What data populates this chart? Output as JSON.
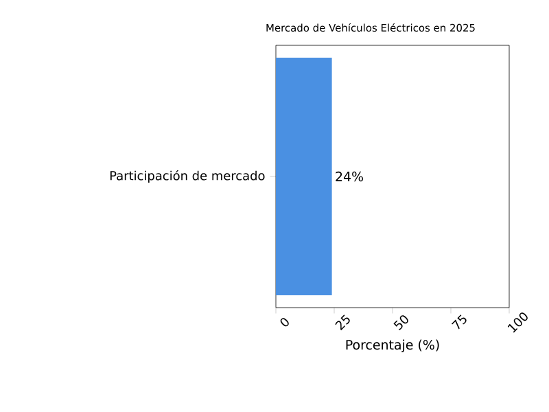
{
  "chart_data": {
    "type": "bar",
    "orientation": "horizontal",
    "title": "Mercado de Vehículos Eléctricos en 2025",
    "xlabel": "Porcentaje (%)",
    "categories": [
      "Participación de mercado"
    ],
    "values": [
      24
    ],
    "color": "#4a90e2",
    "value_labels": [
      "24%"
    ],
    "xlim": [
      0,
      100
    ],
    "xticks": [
      0,
      25,
      50,
      75,
      100
    ]
  }
}
